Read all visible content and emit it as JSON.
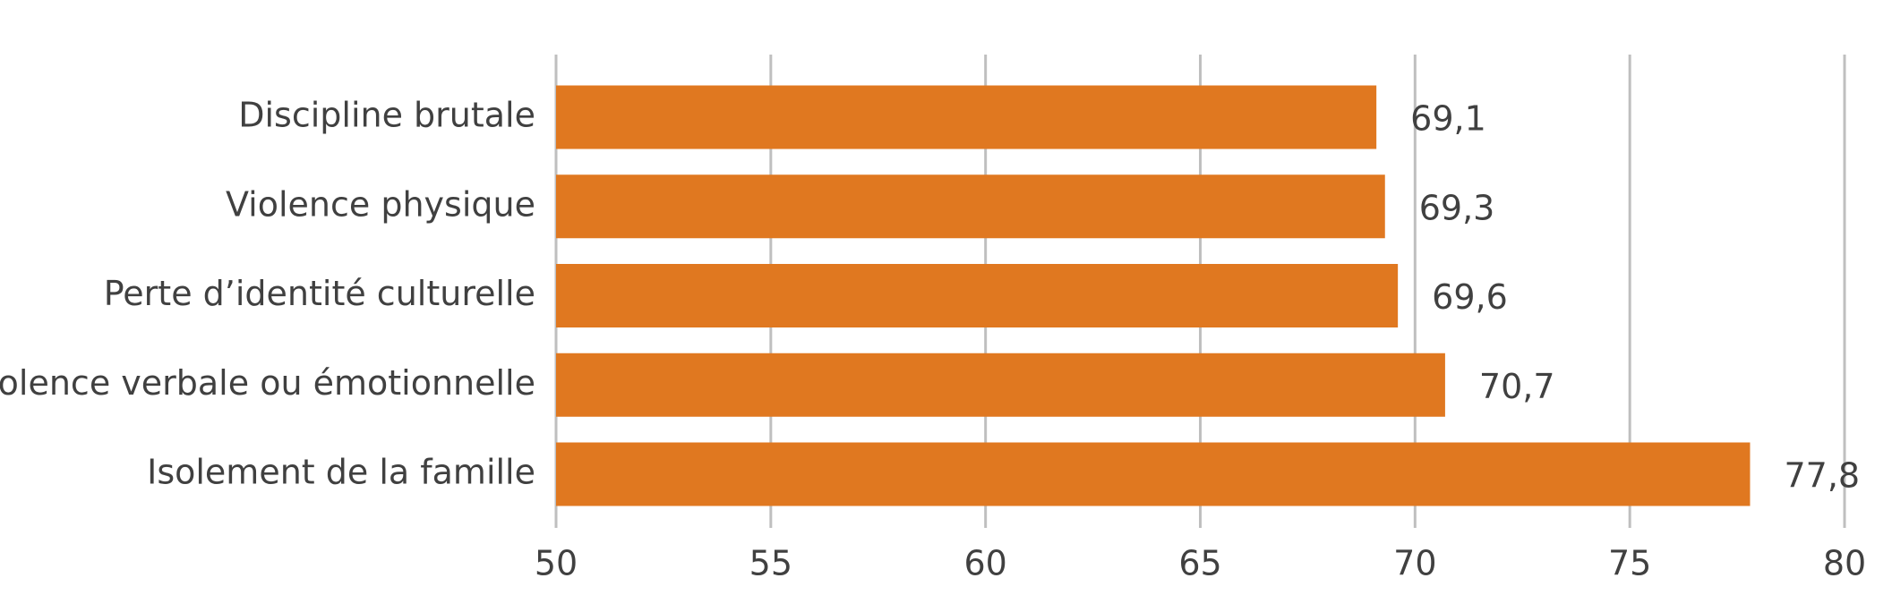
{
  "chart_data": {
    "type": "hbar",
    "categories": [
      "Discipline brutale",
      "Violence physique",
      "Perte d’identité culturelle",
      "Violence verbale ou émotionnelle",
      "Isolement de la famille"
    ],
    "values": [
      69.1,
      69.3,
      69.6,
      70.7,
      77.8
    ],
    "value_labels": [
      "69,1",
      "69,3",
      "69,6",
      "70,7",
      "77,8"
    ],
    "color": "#e07820",
    "xlim": [
      50,
      80
    ],
    "xticks": [
      50,
      55,
      60,
      65,
      70,
      75,
      80
    ],
    "grid": true
  }
}
